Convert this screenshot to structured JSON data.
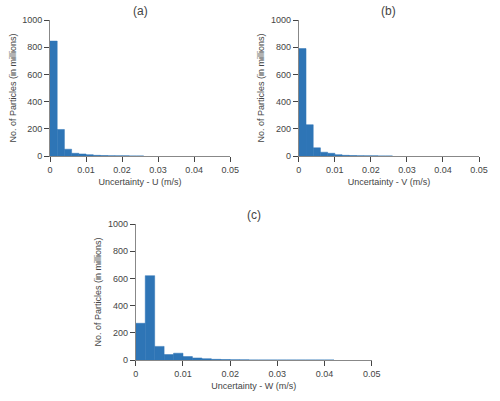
{
  "chart_data": [
    {
      "type": "histogram",
      "title": "(a)",
      "x_label": "Uncertainty - U (m/s)",
      "y_label": "No. of Particles (in millions)",
      "bins": [
        0,
        0.002,
        0.004,
        0.006,
        0.008,
        0.01,
        0.012,
        0.014,
        0.016,
        0.018,
        0.02,
        0.022,
        0.024,
        0.026
      ],
      "values": [
        845,
        195,
        50,
        20,
        15,
        10,
        5,
        3,
        2,
        1,
        1,
        0,
        0
      ],
      "color": "#2e75b6",
      "xlim": [
        0,
        0.05
      ],
      "xticks": [
        0,
        0.01,
        0.02,
        0.03,
        0.04,
        0.05
      ],
      "ylim": [
        0,
        1000
      ],
      "yticks": [
        0,
        200,
        400,
        600,
        800,
        1000
      ],
      "grid": false
    },
    {
      "type": "histogram",
      "title": "(b)",
      "x_label": "Uncertainty - V (m/s)",
      "y_label": "No. of Particles (in millions)",
      "bins": [
        0,
        0.002,
        0.004,
        0.006,
        0.008,
        0.01,
        0.012,
        0.014,
        0.016,
        0.018,
        0.02,
        0.022,
        0.024,
        0.026
      ],
      "values": [
        790,
        230,
        60,
        28,
        20,
        10,
        5,
        3,
        2,
        1,
        1,
        0,
        0
      ],
      "color": "#2e75b6",
      "xlim": [
        0,
        0.05
      ],
      "xticks": [
        0,
        0.01,
        0.02,
        0.03,
        0.04,
        0.05
      ],
      "ylim": [
        0,
        1000
      ],
      "yticks": [
        0,
        200,
        400,
        600,
        800,
        1000
      ],
      "grid": false
    },
    {
      "type": "histogram",
      "title": "(c)",
      "x_label": "Uncertainty - W (m/s)",
      "y_label": "No. of Particles (in millions)",
      "bins": [
        0,
        0.002,
        0.004,
        0.006,
        0.008,
        0.01,
        0.012,
        0.014,
        0.016,
        0.018,
        0.02,
        0.022,
        0.024,
        0.026,
        0.028,
        0.03,
        0.032,
        0.034,
        0.036,
        0.038,
        0.04,
        0.042
      ],
      "values": [
        270,
        620,
        100,
        40,
        50,
        25,
        15,
        10,
        5,
        3,
        2,
        1,
        0,
        0,
        0,
        0,
        0,
        0,
        0,
        0,
        0
      ],
      "color": "#2e75b6",
      "xlim": [
        0,
        0.05
      ],
      "xticks": [
        0,
        0.01,
        0.02,
        0.03,
        0.04,
        0.05
      ],
      "ylim": [
        0,
        1000
      ],
      "yticks": [
        0,
        200,
        400,
        600,
        800,
        1000
      ],
      "grid": false
    }
  ]
}
